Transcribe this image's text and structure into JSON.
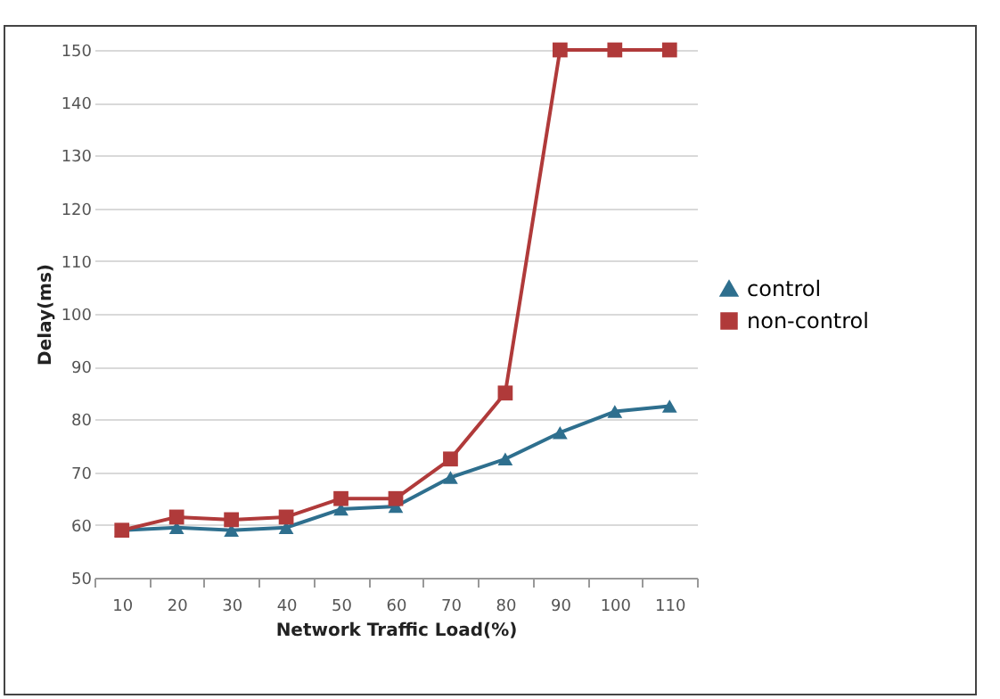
{
  "chart_data": {
    "type": "line",
    "xlabel": "Network Traffic Load(%)",
    "ylabel": "Delay(ms)",
    "categories": [
      "10",
      "20",
      "30",
      "40",
      "50",
      "60",
      "70",
      "80",
      "90",
      "100",
      "110"
    ],
    "series": [
      {
        "name": "control",
        "color": "#2e6f8e",
        "marker": "triangle",
        "values": [
          59,
          59.5,
          59,
          59.5,
          63,
          63.5,
          69,
          72.5,
          77.5,
          81.5,
          82.5
        ]
      },
      {
        "name": "non-control",
        "color": "#b03a3a",
        "marker": "square",
        "values": [
          59,
          61.5,
          61,
          61.5,
          65,
          65,
          72.5,
          85,
          150,
          150,
          150
        ]
      }
    ],
    "ylim": [
      50,
      150
    ],
    "yticks": [
      50,
      60,
      70,
      80,
      90,
      100,
      110,
      120,
      130,
      140,
      150
    ],
    "grid": "y",
    "legend": "right"
  }
}
